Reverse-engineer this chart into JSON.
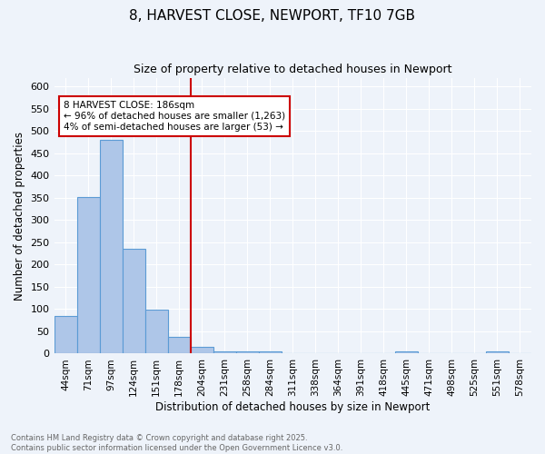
{
  "title": "8, HARVEST CLOSE, NEWPORT, TF10 7GB",
  "subtitle": "Size of property relative to detached houses in Newport",
  "xlabel": "Distribution of detached houses by size in Newport",
  "ylabel": "Number of detached properties",
  "bar_values": [
    85,
    352,
    480,
    236,
    99,
    38,
    16,
    6,
    6,
    4,
    0,
    0,
    0,
    0,
    0,
    4,
    0,
    0,
    0,
    4,
    0
  ],
  "bar_labels": [
    "44sqm",
    "71sqm",
    "97sqm",
    "124sqm",
    "151sqm",
    "178sqm",
    "204sqm",
    "231sqm",
    "258sqm",
    "284sqm",
    "311sqm",
    "338sqm",
    "364sqm",
    "391sqm",
    "418sqm",
    "445sqm",
    "471sqm",
    "498sqm",
    "525sqm",
    "551sqm",
    "578sqm"
  ],
  "bar_color": "#aec6e8",
  "bar_edge_color": "#5b9bd5",
  "vline_x": 5.5,
  "vline_color": "#cc0000",
  "ylim": [
    0,
    620
  ],
  "yticks": [
    0,
    50,
    100,
    150,
    200,
    250,
    300,
    350,
    400,
    450,
    500,
    550,
    600
  ],
  "annotation_title": "8 HARVEST CLOSE: 186sqm",
  "annotation_line1": "← 96% of detached houses are smaller (1,263)",
  "annotation_line2": "4% of semi-detached houses are larger (53) →",
  "annotation_box_color": "#ffffff",
  "annotation_box_edge": "#cc0000",
  "bg_color": "#eef3fa",
  "grid_color": "#ffffff",
  "footer_text": "Contains HM Land Registry data © Crown copyright and database right 2025.\nContains public sector information licensed under the Open Government Licence v3.0.",
  "figsize": [
    6.0,
    5.0
  ],
  "dpi": 100
}
